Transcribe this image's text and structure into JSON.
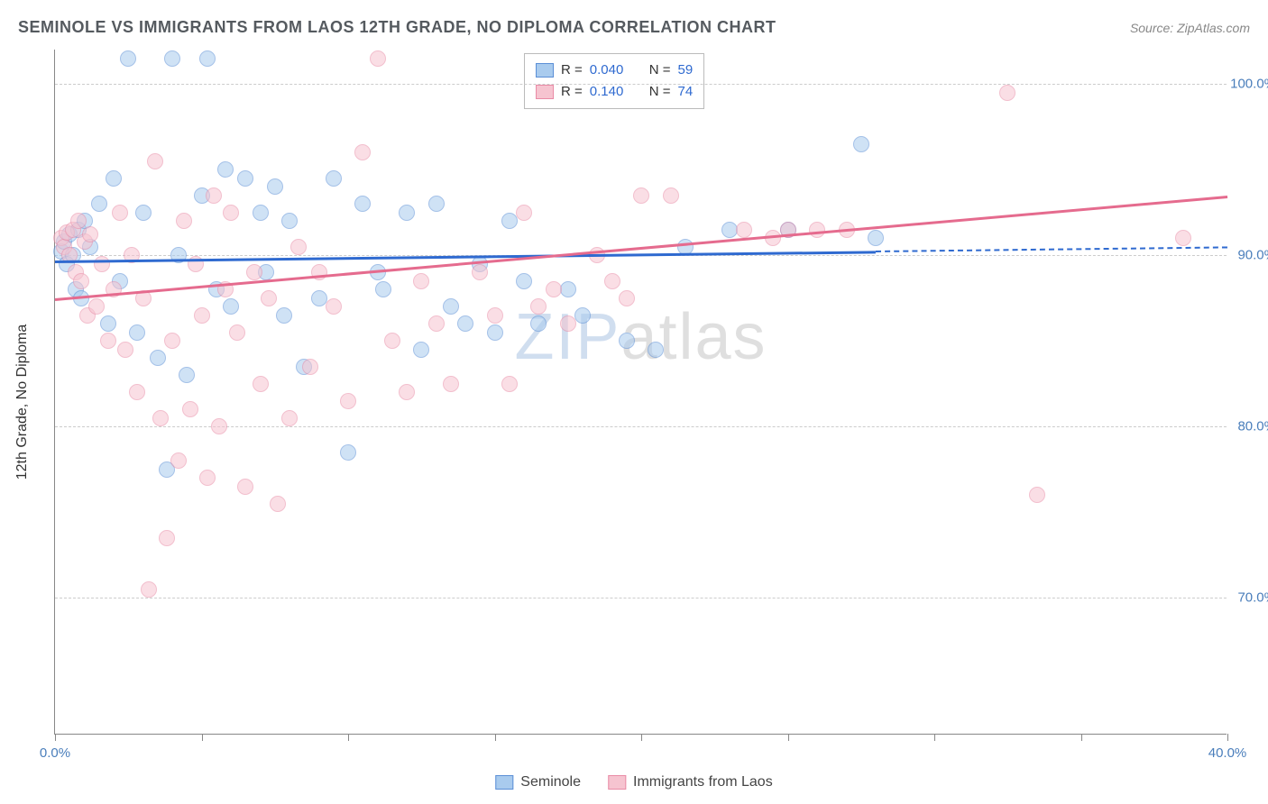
{
  "title": "SEMINOLE VS IMMIGRANTS FROM LAOS 12TH GRADE, NO DIPLOMA CORRELATION CHART",
  "source": "Source: ZipAtlas.com",
  "yaxis_title": "12th Grade, No Diploma",
  "watermark": {
    "zip": "ZIP",
    "atlas": "atlas"
  },
  "chart": {
    "type": "scatter",
    "xlim": [
      0,
      40
    ],
    "ylim": [
      62,
      102
    ],
    "xtick_positions": [
      0,
      5,
      10,
      15,
      20,
      25,
      30,
      35,
      40
    ],
    "xtick_labels": {
      "0": "0.0%",
      "40": "40.0%"
    },
    "ytick_positions": [
      70,
      80,
      90,
      100
    ],
    "ytick_labels": [
      "70.0%",
      "80.0%",
      "90.0%",
      "100.0%"
    ],
    "grid_color": "#cccccc",
    "background_color": "#ffffff",
    "marker_radius": 9,
    "marker_opacity": 0.55,
    "series": [
      {
        "name": "Seminole",
        "color_fill": "#a9cbee",
        "color_stroke": "#5b8fd6",
        "line_color": "#2f6ad0",
        "R": "0.040",
        "N": "59",
        "trend": {
          "x1": 0,
          "y1": 89.7,
          "x2": 40,
          "y2": 90.5,
          "solid_until_x": 28
        },
        "points": [
          [
            0.2,
            90.2
          ],
          [
            0.3,
            90.8
          ],
          [
            0.4,
            89.5
          ],
          [
            0.5,
            91.2
          ],
          [
            0.6,
            90.0
          ],
          [
            0.7,
            88.0
          ],
          [
            0.8,
            91.5
          ],
          [
            0.9,
            87.5
          ],
          [
            1.0,
            92.0
          ],
          [
            1.2,
            90.5
          ],
          [
            1.5,
            93.0
          ],
          [
            1.8,
            86.0
          ],
          [
            2.0,
            94.5
          ],
          [
            2.2,
            88.5
          ],
          [
            2.5,
            101.5
          ],
          [
            2.8,
            85.5
          ],
          [
            3.0,
            92.5
          ],
          [
            3.5,
            84.0
          ],
          [
            3.8,
            77.5
          ],
          [
            4.0,
            101.5
          ],
          [
            4.2,
            90.0
          ],
          [
            4.5,
            83.0
          ],
          [
            5.0,
            93.5
          ],
          [
            5.2,
            101.5
          ],
          [
            5.5,
            88.0
          ],
          [
            5.8,
            95.0
          ],
          [
            6.0,
            87.0
          ],
          [
            6.5,
            94.5
          ],
          [
            7.0,
            92.5
          ],
          [
            7.2,
            89.0
          ],
          [
            7.5,
            94.0
          ],
          [
            7.8,
            86.5
          ],
          [
            8.0,
            92.0
          ],
          [
            8.5,
            83.5
          ],
          [
            9.0,
            87.5
          ],
          [
            9.5,
            94.5
          ],
          [
            10.0,
            78.5
          ],
          [
            10.5,
            93.0
          ],
          [
            11.0,
            89.0
          ],
          [
            11.2,
            88.0
          ],
          [
            12.0,
            92.5
          ],
          [
            12.5,
            84.5
          ],
          [
            13.0,
            93.0
          ],
          [
            13.5,
            87.0
          ],
          [
            14.0,
            86.0
          ],
          [
            14.5,
            89.5
          ],
          [
            15.0,
            85.5
          ],
          [
            15.5,
            92.0
          ],
          [
            16.0,
            88.5
          ],
          [
            16.5,
            86.0
          ],
          [
            17.5,
            88.0
          ],
          [
            18.0,
            86.5
          ],
          [
            19.5,
            85.0
          ],
          [
            20.5,
            84.5
          ],
          [
            21.5,
            90.5
          ],
          [
            23.0,
            91.5
          ],
          [
            25.0,
            91.5
          ],
          [
            27.5,
            96.5
          ],
          [
            28.0,
            91.0
          ]
        ]
      },
      {
        "name": "Immigrants from Laos",
        "color_fill": "#f6c4d0",
        "color_stroke": "#e98ba6",
        "line_color": "#e56b8e",
        "R": "0.140",
        "N": "74",
        "trend": {
          "x1": 0,
          "y1": 87.5,
          "x2": 40,
          "y2": 93.5,
          "solid_until_x": 40
        },
        "points": [
          [
            0.2,
            91.0
          ],
          [
            0.3,
            90.5
          ],
          [
            0.4,
            91.3
          ],
          [
            0.5,
            90.0
          ],
          [
            0.6,
            91.5
          ],
          [
            0.7,
            89.0
          ],
          [
            0.8,
            92.0
          ],
          [
            0.9,
            88.5
          ],
          [
            1.0,
            90.8
          ],
          [
            1.1,
            86.5
          ],
          [
            1.2,
            91.2
          ],
          [
            1.4,
            87.0
          ],
          [
            1.6,
            89.5
          ],
          [
            1.8,
            85.0
          ],
          [
            2.0,
            88.0
          ],
          [
            2.2,
            92.5
          ],
          [
            2.4,
            84.5
          ],
          [
            2.6,
            90.0
          ],
          [
            2.8,
            82.0
          ],
          [
            3.0,
            87.5
          ],
          [
            3.2,
            70.5
          ],
          [
            3.4,
            95.5
          ],
          [
            3.6,
            80.5
          ],
          [
            3.8,
            73.5
          ],
          [
            4.0,
            85.0
          ],
          [
            4.2,
            78.0
          ],
          [
            4.4,
            92.0
          ],
          [
            4.6,
            81.0
          ],
          [
            4.8,
            89.5
          ],
          [
            5.0,
            86.5
          ],
          [
            5.2,
            77.0
          ],
          [
            5.4,
            93.5
          ],
          [
            5.6,
            80.0
          ],
          [
            5.8,
            88.0
          ],
          [
            6.0,
            92.5
          ],
          [
            6.2,
            85.5
          ],
          [
            6.5,
            76.5
          ],
          [
            6.8,
            89.0
          ],
          [
            7.0,
            82.5
          ],
          [
            7.3,
            87.5
          ],
          [
            7.6,
            75.5
          ],
          [
            8.0,
            80.5
          ],
          [
            8.3,
            90.5
          ],
          [
            8.7,
            83.5
          ],
          [
            9.0,
            89.0
          ],
          [
            9.5,
            87.0
          ],
          [
            10.0,
            81.5
          ],
          [
            10.5,
            96.0
          ],
          [
            11.0,
            101.5
          ],
          [
            11.5,
            85.0
          ],
          [
            12.0,
            82.0
          ],
          [
            12.5,
            88.5
          ],
          [
            13.0,
            86.0
          ],
          [
            13.5,
            82.5
          ],
          [
            14.5,
            89.0
          ],
          [
            15.0,
            86.5
          ],
          [
            15.5,
            82.5
          ],
          [
            16.0,
            92.5
          ],
          [
            16.5,
            87.0
          ],
          [
            17.0,
            88.0
          ],
          [
            17.5,
            86.0
          ],
          [
            18.5,
            90.0
          ],
          [
            19.0,
            88.5
          ],
          [
            19.5,
            87.5
          ],
          [
            20.0,
            93.5
          ],
          [
            21.0,
            93.5
          ],
          [
            23.5,
            91.5
          ],
          [
            24.5,
            91.0
          ],
          [
            25.0,
            91.5
          ],
          [
            26.0,
            91.5
          ],
          [
            27.0,
            91.5
          ],
          [
            32.5,
            99.5
          ],
          [
            33.5,
            76.0
          ],
          [
            38.5,
            91.0
          ]
        ]
      }
    ]
  },
  "legend_stats": {
    "rows": [
      {
        "swatch_fill": "#a9cbee",
        "swatch_stroke": "#5b8fd6",
        "R_label": "R =",
        "R_val": "0.040",
        "N_label": "N =",
        "N_val": "59"
      },
      {
        "swatch_fill": "#f6c4d0",
        "swatch_stroke": "#e98ba6",
        "R_label": "R =",
        "R_val": "0.140",
        "N_label": "N =",
        "N_val": "74"
      }
    ]
  },
  "legend_bottom": [
    {
      "swatch_fill": "#a9cbee",
      "swatch_stroke": "#5b8fd6",
      "label": "Seminole"
    },
    {
      "swatch_fill": "#f6c4d0",
      "swatch_stroke": "#e98ba6",
      "label": "Immigrants from Laos"
    }
  ]
}
